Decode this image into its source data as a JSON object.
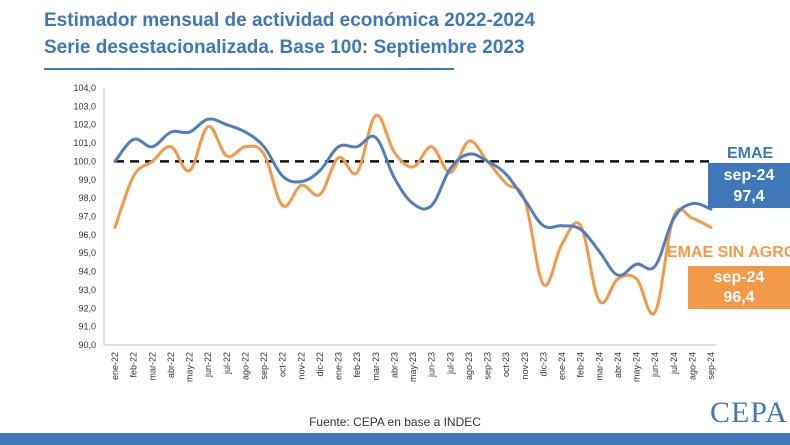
{
  "header": {
    "title_line1": "Estimador mensual de actividad económica 2022-2024",
    "title_line2": "Serie desestacionalizada. Base 100: Septiembre 2023"
  },
  "labels": {
    "emae": {
      "name": "EMAE",
      "period": "sep-24",
      "value": "97,4"
    },
    "emae_sin_agro": {
      "name": "EMAE SIN AGRO",
      "period": "sep-24",
      "value": "96,4"
    }
  },
  "footer": {
    "source": "Fuente: CEPA en base a INDEC",
    "logo": "CEPA"
  },
  "colors": {
    "emae": "#4f7fc0",
    "emae_sin_agro": "#f39a49",
    "accent": "#3f77b8"
  },
  "chart_data": {
    "type": "line",
    "title": "Estimador mensual de actividad económica 2022-2024",
    "subtitle": "Serie desestacionalizada. Base 100: Septiembre 2023",
    "categories": [
      "ene-22",
      "feb-22",
      "mar-22",
      "abr-22",
      "may-22",
      "jun-22",
      "jul-22",
      "ago-22",
      "sep-22",
      "oct-22",
      "nov-22",
      "dic-22",
      "ene-23",
      "feb-23",
      "mar-23",
      "abr-23",
      "may-23",
      "jun-23",
      "jul-23",
      "ago-23",
      "sep-23",
      "oct-23",
      "nov-23",
      "dic-23",
      "ene-24",
      "feb-24",
      "mar-24",
      "abr-24",
      "may-24",
      "jun-24",
      "jul-24",
      "ago-24",
      "sep-24"
    ],
    "series": [
      {
        "name": "EMAE",
        "values": [
          100.0,
          101.2,
          100.8,
          101.6,
          101.6,
          102.3,
          102.0,
          101.6,
          100.8,
          99.2,
          98.9,
          99.5,
          100.8,
          100.8,
          101.3,
          99.1,
          97.7,
          97.6,
          99.6,
          100.4,
          100.0,
          99.3,
          97.9,
          96.5,
          96.5,
          96.3,
          95.1,
          93.8,
          94.4,
          94.3,
          96.9,
          97.7,
          97.4
        ]
      },
      {
        "name": "EMAE SIN AGRO",
        "values": [
          96.4,
          99.2,
          100.0,
          100.8,
          99.5,
          101.9,
          100.3,
          100.8,
          100.4,
          97.6,
          98.7,
          98.2,
          100.2,
          99.4,
          102.5,
          100.5,
          99.7,
          100.8,
          99.4,
          101.1,
          100.0,
          98.8,
          97.9,
          93.3,
          95.5,
          96.5,
          92.4,
          93.6,
          93.6,
          91.8,
          97.0,
          96.9,
          96.4
        ]
      }
    ],
    "reference_line": {
      "value": 100.0,
      "style": "dashed"
    },
    "ylim": [
      90.0,
      104.0
    ],
    "yticks": [
      "90,0",
      "91,0",
      "92,0",
      "93,0",
      "94,0",
      "95,0",
      "96,0",
      "97,0",
      "98,0",
      "99,0",
      "100,0",
      "101,0",
      "102,0",
      "103,0",
      "104,0"
    ],
    "xlabel": "",
    "ylabel": "",
    "grid": false,
    "legend": "labels at right end of lines"
  }
}
